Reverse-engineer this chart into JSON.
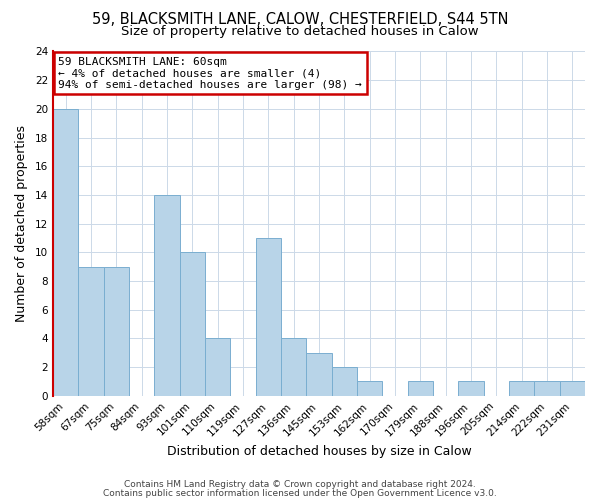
{
  "title": "59, BLACKSMITH LANE, CALOW, CHESTERFIELD, S44 5TN",
  "subtitle": "Size of property relative to detached houses in Calow",
  "xlabel": "Distribution of detached houses by size in Calow",
  "ylabel": "Number of detached properties",
  "bar_labels": [
    "58sqm",
    "67sqm",
    "75sqm",
    "84sqm",
    "93sqm",
    "101sqm",
    "110sqm",
    "119sqm",
    "127sqm",
    "136sqm",
    "145sqm",
    "153sqm",
    "162sqm",
    "170sqm",
    "179sqm",
    "188sqm",
    "196sqm",
    "205sqm",
    "214sqm",
    "222sqm",
    "231sqm"
  ],
  "bar_values": [
    20,
    9,
    9,
    0,
    14,
    10,
    4,
    0,
    11,
    4,
    3,
    2,
    1,
    0,
    1,
    0,
    1,
    0,
    1,
    1,
    1
  ],
  "bar_color": "#b8d4e8",
  "bar_edge_color": "#7aaed0",
  "annotation_line1": "59 BLACKSMITH LANE: 60sqm",
  "annotation_line2": "← 4% of detached houses are smaller (4)",
  "annotation_line3": "94% of semi-detached houses are larger (98) →",
  "annotation_box_edge_color": "#cc0000",
  "property_line_color": "#cc0000",
  "ylim": [
    0,
    24
  ],
  "yticks": [
    0,
    2,
    4,
    6,
    8,
    10,
    12,
    14,
    16,
    18,
    20,
    22,
    24
  ],
  "footer_line1": "Contains HM Land Registry data © Crown copyright and database right 2024.",
  "footer_line2": "Contains public sector information licensed under the Open Government Licence v3.0.",
  "background_color": "#ffffff",
  "grid_color": "#ccd9e8",
  "title_fontsize": 10.5,
  "subtitle_fontsize": 9.5,
  "axis_label_fontsize": 9,
  "tick_fontsize": 7.5,
  "annotation_fontsize": 8,
  "footer_fontsize": 6.5
}
